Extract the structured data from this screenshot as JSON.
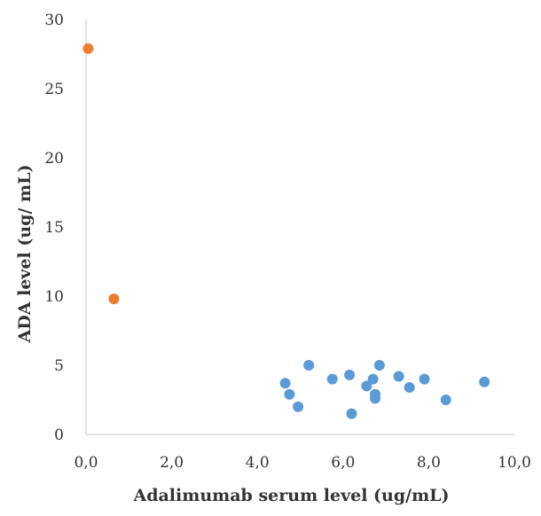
{
  "chart_data": {
    "type": "scatter",
    "title": "",
    "xlabel": "Adalimumab serum level (ug/mL)",
    "ylabel": "ADA level (ug/ mL)",
    "xlim": [
      0,
      10
    ],
    "ylim": [
      0,
      30
    ],
    "x_ticks": [
      "0,0",
      "2,0",
      "4,0",
      "6,0",
      "8,0",
      "10,0"
    ],
    "x_tick_values": [
      0,
      2,
      4,
      6,
      8,
      10
    ],
    "y_ticks": [
      "0",
      "5",
      "10",
      "15",
      "20",
      "25",
      "30"
    ],
    "y_tick_values": [
      0,
      5,
      10,
      15,
      20,
      25,
      30
    ],
    "grid": false,
    "legend": "none",
    "series": [
      {
        "color": "#5b9bd5",
        "points": [
          {
            "x": 4.65,
            "y": 3.7
          },
          {
            "x": 4.75,
            "y": 2.9
          },
          {
            "x": 4.95,
            "y": 2.0
          },
          {
            "x": 5.2,
            "y": 5.0
          },
          {
            "x": 5.75,
            "y": 4.0
          },
          {
            "x": 6.15,
            "y": 4.3
          },
          {
            "x": 6.2,
            "y": 1.5
          },
          {
            "x": 6.55,
            "y": 3.5
          },
          {
            "x": 6.7,
            "y": 4.0
          },
          {
            "x": 6.75,
            "y": 2.9
          },
          {
            "x": 6.75,
            "y": 2.6
          },
          {
            "x": 6.85,
            "y": 5.0
          },
          {
            "x": 7.3,
            "y": 4.2
          },
          {
            "x": 7.55,
            "y": 3.4
          },
          {
            "x": 7.9,
            "y": 4.0
          },
          {
            "x": 8.4,
            "y": 2.5
          },
          {
            "x": 9.3,
            "y": 3.8
          }
        ]
      },
      {
        "color": "#ed7d31",
        "points": [
          {
            "x": 0.05,
            "y": 27.9
          },
          {
            "x": 0.65,
            "y": 9.8
          }
        ]
      }
    ]
  }
}
